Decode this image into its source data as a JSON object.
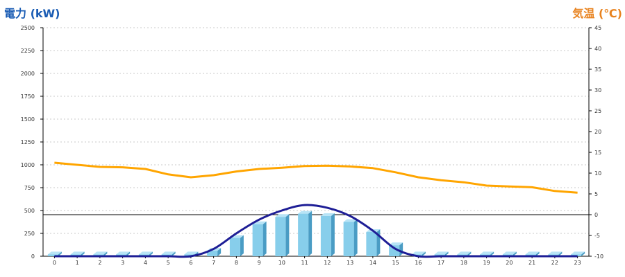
{
  "chart_data": {
    "type": "bar",
    "left_title": "電力 (kW)",
    "right_title": "気温 (℃)",
    "categories": [
      "0",
      "1",
      "2",
      "3",
      "4",
      "5",
      "6",
      "7",
      "8",
      "9",
      "10",
      "11",
      "12",
      "13",
      "14",
      "15",
      "16",
      "17",
      "18",
      "19",
      "20",
      "21",
      "22",
      "23"
    ],
    "series": [
      {
        "kind": "bar",
        "axis": "left",
        "values": [
          20,
          20,
          20,
          20,
          20,
          20,
          20,
          60,
          200,
          350,
          430,
          465,
          440,
          375,
          265,
          120,
          20,
          20,
          20,
          20,
          20,
          20,
          20,
          20
        ]
      },
      {
        "kind": "line-smooth",
        "axis": "left",
        "values": [
          0,
          0,
          0,
          0,
          0,
          0,
          0,
          80,
          250,
          400,
          500,
          560,
          530,
          440,
          280,
          80,
          0,
          0,
          0,
          0,
          0,
          0,
          0,
          0
        ]
      },
      {
        "kind": "line",
        "axis": "right",
        "values": [
          12.5,
          12,
          11.5,
          11.4,
          11,
          9.7,
          9,
          9.5,
          10.4,
          11,
          11.3,
          11.7,
          11.8,
          11.6,
          11.2,
          10.2,
          9,
          8.3,
          7.8,
          7,
          6.8,
          6.6,
          5.7,
          5.3
        ]
      }
    ],
    "ylim_left": [
      0,
      2500
    ],
    "yticks_left": [
      "0",
      "250",
      "500",
      "750",
      "1000",
      "1250",
      "1500",
      "1750",
      "2000",
      "2250",
      "2500"
    ],
    "ylim_right": [
      -10,
      45
    ],
    "yticks_right": [
      "-10",
      "-5",
      "0",
      "5",
      "10",
      "15",
      "20",
      "25",
      "30",
      "35",
      "40",
      "45"
    ],
    "reference_line_right": 0,
    "colors": {
      "left_title": "#1a5cb4",
      "right_title": "#e8821e",
      "bar": "#87ceeb",
      "bar_side": "#4a9cc4",
      "bar_top": "#b8e4f6",
      "line_blue": "#1e1e96",
      "line_orange": "#ffa500"
    },
    "grid": true
  }
}
